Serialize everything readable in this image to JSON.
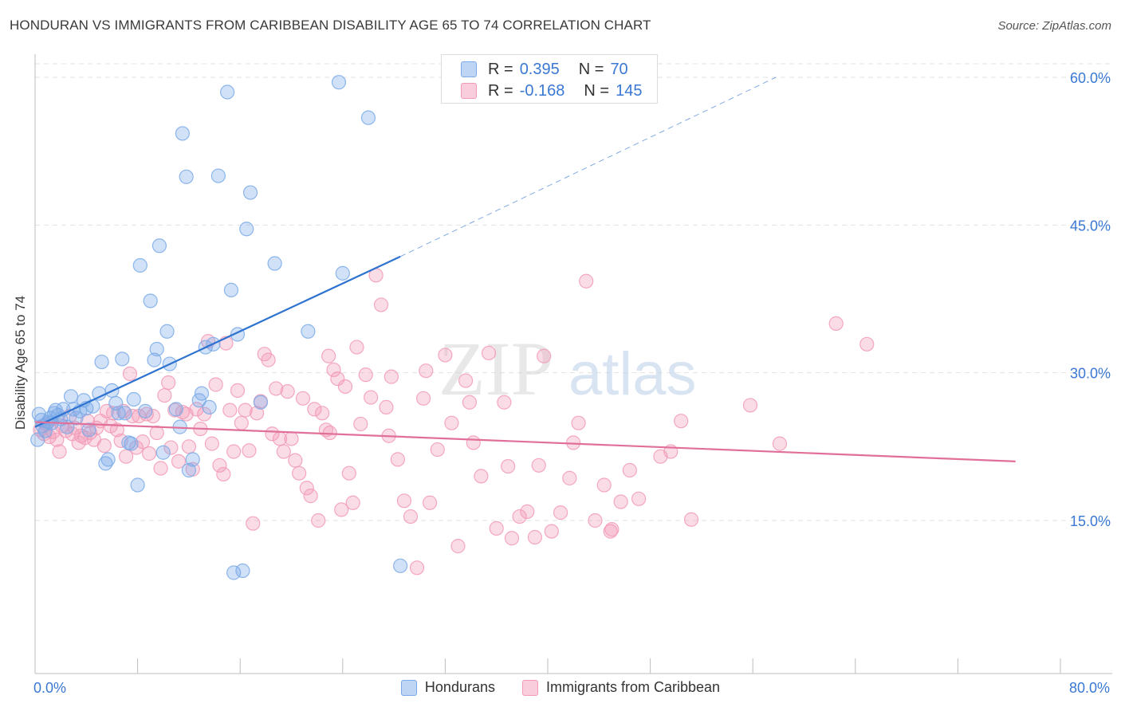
{
  "title": "HONDURAN VS IMMIGRANTS FROM CARIBBEAN DISABILITY AGE 65 TO 74 CORRELATION CHART",
  "source": "Source: ZipAtlas.com",
  "watermark": {
    "zip": "ZIP",
    "atlas": "atlas"
  },
  "legend_top": {
    "rows": [
      {
        "r_label": "R =",
        "r_value": "0.395",
        "n_label": "N =",
        "n_value": "70"
      },
      {
        "r_label": "R =",
        "r_value": "-0.168",
        "n_label": "N =",
        "n_value": "145"
      }
    ]
  },
  "x_axis": {
    "min_label": "0.0%",
    "max_label": "80.0%"
  },
  "chart_data": {
    "type": "scatter",
    "title": "HONDURAN VS IMMIGRANTS FROM CARIBBEAN DISABILITY AGE 65 TO 74 CORRELATION CHART",
    "xlabel": "",
    "ylabel": "Disability Age 65 to 74",
    "xlim": [
      0,
      80
    ],
    "ylim": [
      0,
      63
    ],
    "y_ticks": [
      15,
      30,
      45,
      60
    ],
    "y_tick_labels": [
      "15.0%",
      "30.0%",
      "45.0%",
      "60.0%"
    ],
    "x_tick_labels_shown": [
      "0.0%",
      "80.0%"
    ],
    "grid": true,
    "legend_position": "top-center",
    "colors": {
      "hondurans": "#7aaae8",
      "caribbean": "#f29ab6",
      "hondurans_line": "#2f73d0",
      "caribbean_line": "#e0709a",
      "axis_text": "#3a78d4"
    },
    "series": [
      {
        "name": "Hondurans",
        "r": 0.395,
        "n": 70,
        "trend": {
          "x": [
            0,
            28.5
          ],
          "y": [
            24.5,
            41.8
          ],
          "extended_to": [
            57.8,
            60
          ]
        },
        "points": [
          [
            0.3,
            25.8
          ],
          [
            0.5,
            25.2
          ],
          [
            0.6,
            24.6
          ],
          [
            0.8,
            24.1
          ],
          [
            1.0,
            25.0
          ],
          [
            1.2,
            25.4
          ],
          [
            1.3,
            24.9
          ],
          [
            1.5,
            25.9
          ],
          [
            1.6,
            26.2
          ],
          [
            1.8,
            25.7
          ],
          [
            2.0,
            25.3
          ],
          [
            2.2,
            26.3
          ],
          [
            2.5,
            24.5
          ],
          [
            2.8,
            27.6
          ],
          [
            3.0,
            26.3
          ],
          [
            3.2,
            25.4
          ],
          [
            3.5,
            26.1
          ],
          [
            3.8,
            27.2
          ],
          [
            4.0,
            26.4
          ],
          [
            4.2,
            24.2
          ],
          [
            4.5,
            26.6
          ],
          [
            5.0,
            27.9
          ],
          [
            5.2,
            31.1
          ],
          [
            5.5,
            20.8
          ],
          [
            5.7,
            21.2
          ],
          [
            6.0,
            28.2
          ],
          [
            6.3,
            26.9
          ],
          [
            6.5,
            25.9
          ],
          [
            6.8,
            31.4
          ],
          [
            7.0,
            25.9
          ],
          [
            7.3,
            22.9
          ],
          [
            7.5,
            22.8
          ],
          [
            7.7,
            27.3
          ],
          [
            8.0,
            18.6
          ],
          [
            8.2,
            40.9
          ],
          [
            8.6,
            26.1
          ],
          [
            9.0,
            37.3
          ],
          [
            9.3,
            31.3
          ],
          [
            9.5,
            32.4
          ],
          [
            9.7,
            42.9
          ],
          [
            10.0,
            21.9
          ],
          [
            10.3,
            34.2
          ],
          [
            10.5,
            30.9
          ],
          [
            11.0,
            26.3
          ],
          [
            11.3,
            24.5
          ],
          [
            11.5,
            54.3
          ],
          [
            11.8,
            49.9
          ],
          [
            12.0,
            20.1
          ],
          [
            12.3,
            21.2
          ],
          [
            12.8,
            27.2
          ],
          [
            13.0,
            27.9
          ],
          [
            13.3,
            32.6
          ],
          [
            13.6,
            26.5
          ],
          [
            13.9,
            32.9
          ],
          [
            14.3,
            50.0
          ],
          [
            15.0,
            58.5
          ],
          [
            15.3,
            38.4
          ],
          [
            15.5,
            9.7
          ],
          [
            15.8,
            33.9
          ],
          [
            16.2,
            9.9
          ],
          [
            16.5,
            44.6
          ],
          [
            16.8,
            48.3
          ],
          [
            17.6,
            27.0
          ],
          [
            18.7,
            41.1
          ],
          [
            21.3,
            34.2
          ],
          [
            23.7,
            59.5
          ],
          [
            24.0,
            40.1
          ],
          [
            26.0,
            55.9
          ],
          [
            28.5,
            10.4
          ],
          [
            0.2,
            23.2
          ]
        ]
      },
      {
        "name": "Immigrants from Caribbean",
        "r": -0.168,
        "n": 145,
        "trend": {
          "x": [
            0,
            76.5
          ],
          "y": [
            25.0,
            21.0
          ]
        },
        "points": [
          [
            0.4,
            24.2
          ],
          [
            0.7,
            23.8
          ],
          [
            0.9,
            24.8
          ],
          [
            1.1,
            23.5
          ],
          [
            1.4,
            24.0
          ],
          [
            1.7,
            23.2
          ],
          [
            1.9,
            22.0
          ],
          [
            2.1,
            24.6
          ],
          [
            2.4,
            24.1
          ],
          [
            2.7,
            25.6
          ],
          [
            2.9,
            23.8
          ],
          [
            3.1,
            24.4
          ],
          [
            3.4,
            22.9
          ],
          [
            3.6,
            23.6
          ],
          [
            3.9,
            23.4
          ],
          [
            4.1,
            25.1
          ],
          [
            4.3,
            23.9
          ],
          [
            4.6,
            23.2
          ],
          [
            4.8,
            24.4
          ],
          [
            5.1,
            25.1
          ],
          [
            5.4,
            22.6
          ],
          [
            5.6,
            26.1
          ],
          [
            5.9,
            24.6
          ],
          [
            6.1,
            25.9
          ],
          [
            6.4,
            24.2
          ],
          [
            6.7,
            23.1
          ],
          [
            6.9,
            26.1
          ],
          [
            7.1,
            21.5
          ],
          [
            7.4,
            29.9
          ],
          [
            7.6,
            25.6
          ],
          [
            7.9,
            22.4
          ],
          [
            8.1,
            25.6
          ],
          [
            8.4,
            23.0
          ],
          [
            8.7,
            25.8
          ],
          [
            8.9,
            21.8
          ],
          [
            9.2,
            25.6
          ],
          [
            9.5,
            23.9
          ],
          [
            9.8,
            20.3
          ],
          [
            10.1,
            27.7
          ],
          [
            10.4,
            29.0
          ],
          [
            10.6,
            22.4
          ],
          [
            10.9,
            26.2
          ],
          [
            11.2,
            21.0
          ],
          [
            11.5,
            26.0
          ],
          [
            11.8,
            25.8
          ],
          [
            12.0,
            22.5
          ],
          [
            12.3,
            20.2
          ],
          [
            12.6,
            26.3
          ],
          [
            12.9,
            24.3
          ],
          [
            13.2,
            25.8
          ],
          [
            13.5,
            33.2
          ],
          [
            13.8,
            22.8
          ],
          [
            14.1,
            28.8
          ],
          [
            14.4,
            20.6
          ],
          [
            14.7,
            19.7
          ],
          [
            14.9,
            33.0
          ],
          [
            15.2,
            26.2
          ],
          [
            15.5,
            22.0
          ],
          [
            15.8,
            28.2
          ],
          [
            16.1,
            24.9
          ],
          [
            16.4,
            26.2
          ],
          [
            16.7,
            22.1
          ],
          [
            17.0,
            14.7
          ],
          [
            17.3,
            25.9
          ],
          [
            17.6,
            27.1
          ],
          [
            17.9,
            31.9
          ],
          [
            18.2,
            31.3
          ],
          [
            18.5,
            23.8
          ],
          [
            18.8,
            28.4
          ],
          [
            19.1,
            23.3
          ],
          [
            19.4,
            22.0
          ],
          [
            19.7,
            28.1
          ],
          [
            20.0,
            23.3
          ],
          [
            20.3,
            21.1
          ],
          [
            20.6,
            19.8
          ],
          [
            20.9,
            27.4
          ],
          [
            21.2,
            18.3
          ],
          [
            21.5,
            17.5
          ],
          [
            21.8,
            26.3
          ],
          [
            22.1,
            15.0
          ],
          [
            22.4,
            25.9
          ],
          [
            22.7,
            24.2
          ],
          [
            23.0,
            23.9
          ],
          [
            23.3,
            30.3
          ],
          [
            23.6,
            29.4
          ],
          [
            23.9,
            16.1
          ],
          [
            24.2,
            28.6
          ],
          [
            24.5,
            19.8
          ],
          [
            24.8,
            16.8
          ],
          [
            25.1,
            32.6
          ],
          [
            25.4,
            24.8
          ],
          [
            25.8,
            29.8
          ],
          [
            26.2,
            27.5
          ],
          [
            26.6,
            39.9
          ],
          [
            27.0,
            36.9
          ],
          [
            27.4,
            26.5
          ],
          [
            27.8,
            29.6
          ],
          [
            28.3,
            21.2
          ],
          [
            28.8,
            17.0
          ],
          [
            29.3,
            15.4
          ],
          [
            29.8,
            10.2
          ],
          [
            30.3,
            27.4
          ],
          [
            30.8,
            16.8
          ],
          [
            31.4,
            22.2
          ],
          [
            32.0,
            31.8
          ],
          [
            32.5,
            24.9
          ],
          [
            33.0,
            12.4
          ],
          [
            33.6,
            29.2
          ],
          [
            34.2,
            22.9
          ],
          [
            34.8,
            19.5
          ],
          [
            35.4,
            32.0
          ],
          [
            36.0,
            14.2
          ],
          [
            36.6,
            27.0
          ],
          [
            37.2,
            13.2
          ],
          [
            37.8,
            15.4
          ],
          [
            38.4,
            15.9
          ],
          [
            39.0,
            13.3
          ],
          [
            39.7,
            31.7
          ],
          [
            40.3,
            13.9
          ],
          [
            41.0,
            15.8
          ],
          [
            41.7,
            19.3
          ],
          [
            42.4,
            24.9
          ],
          [
            43.0,
            39.3
          ],
          [
            43.7,
            15.0
          ],
          [
            44.4,
            18.6
          ],
          [
            45.0,
            14.1
          ],
          [
            45.7,
            16.9
          ],
          [
            46.4,
            20.1
          ],
          [
            47.1,
            17.2
          ],
          [
            48.8,
            21.5
          ],
          [
            49.6,
            22.0
          ],
          [
            50.4,
            25.1
          ],
          [
            51.2,
            15.1
          ],
          [
            55.8,
            26.7
          ],
          [
            58.1,
            22.8
          ],
          [
            62.5,
            35.0
          ],
          [
            64.9,
            32.9
          ],
          [
            27.6,
            23.6
          ],
          [
            22.9,
            31.7
          ],
          [
            33.9,
            27.0
          ],
          [
            30.5,
            30.2
          ],
          [
            36.9,
            20.5
          ],
          [
            42.0,
            22.9
          ],
          [
            39.3,
            20.6
          ],
          [
            44.9,
            13.9
          ]
        ]
      }
    ]
  }
}
